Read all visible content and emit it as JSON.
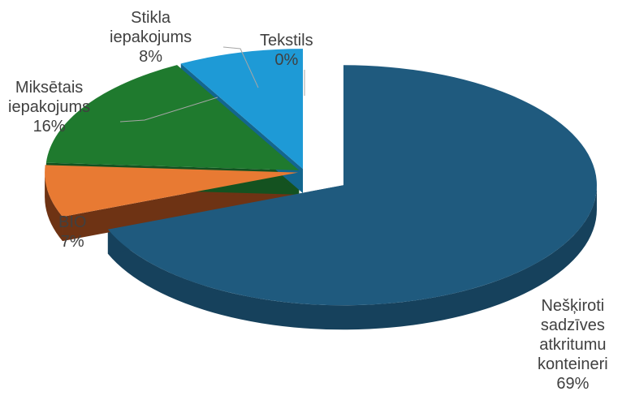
{
  "chart_data": {
    "type": "pie",
    "style": "3d-exploded",
    "title": "",
    "slices": [
      {
        "name": "Nešķiroti sadzīves atkritumu konteineri",
        "lines": [
          "Nešķiroti",
          "sadzīves",
          "atkritumu",
          "konteineri"
        ],
        "value": 69,
        "value_label": "69%",
        "color": "#1f5a7e",
        "side_color": "#16415c"
      },
      {
        "name": "BIO",
        "lines": [
          "BIO"
        ],
        "value": 7,
        "value_label": "7%",
        "color": "#e87a33",
        "side_color": "#6e3314"
      },
      {
        "name": "Miksētais iepakojums",
        "lines": [
          "Miksētais",
          "iepakojums"
        ],
        "value": 16,
        "value_label": "16%",
        "color": "#1f7a2e",
        "side_color": "#145220"
      },
      {
        "name": "Stikla iepakojums",
        "lines": [
          "Stikla",
          "iepakojums"
        ],
        "value": 8,
        "value_label": "8%",
        "color": "#1e9ad6",
        "side_color": "#13668f"
      },
      {
        "name": "Tekstils",
        "lines": [
          "Tekstils"
        ],
        "value": 0,
        "value_label": "0%",
        "color": "#8064a2",
        "side_color": "#5a4672"
      }
    ]
  }
}
